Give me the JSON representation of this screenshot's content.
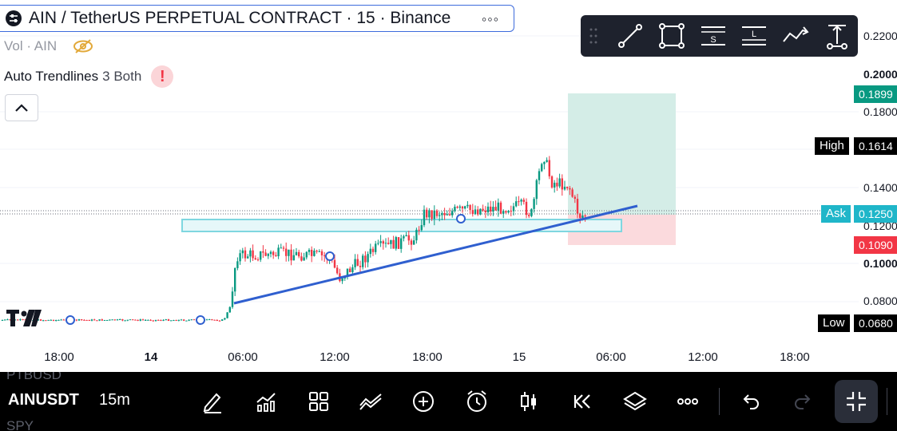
{
  "header": {
    "title": "AIN / TetherUS PERPETUAL CONTRACT · 15 · Binance",
    "more_label": "◦◦◦"
  },
  "indicators": {
    "volume_label": "Vol · AIN",
    "trendlines_name": "Auto Trendlines",
    "trendlines_params": "3 Both",
    "warning_label": "!"
  },
  "drawing_toolbar": {
    "tools": [
      "trend-line-icon",
      "rectangle-icon",
      "short-position-icon",
      "long-position-icon",
      "path-icon",
      "measure-icon"
    ],
    "short_label": "S",
    "long_label": "L"
  },
  "price_axis": {
    "labels": [
      {
        "text": "0.2200",
        "bold": false
      },
      {
        "text": "0.2000",
        "bold": true
      },
      {
        "text": "0.1800",
        "bold": false
      },
      {
        "text": "0.1400",
        "bold": false
      },
      {
        "text": "0.1200",
        "bold": false
      },
      {
        "text": "0.1000",
        "bold": true
      },
      {
        "text": "0.0800",
        "bold": false
      }
    ],
    "tags": {
      "target": "0.1899",
      "high_name": "High",
      "high": "0.1614",
      "ask_name": "Ask",
      "ask": "0.1250",
      "stop": "0.1090",
      "low_name": "Low",
      "low": "0.0680"
    }
  },
  "time_axis": {
    "labels": [
      {
        "text": "18:00",
        "bold": false
      },
      {
        "text": "14",
        "bold": true
      },
      {
        "text": "06:00",
        "bold": false
      },
      {
        "text": "12:00",
        "bold": false
      },
      {
        "text": "18:00",
        "bold": false
      },
      {
        "text": "15",
        "bold": false
      },
      {
        "text": "06:00",
        "bold": false
      },
      {
        "text": "12:00",
        "bold": false
      },
      {
        "text": "18:00",
        "bold": false
      }
    ]
  },
  "colors": {
    "up": "#089981",
    "down": "#f23645",
    "trendline": "#2f5fcf",
    "zone_border": "#7fd7e0",
    "zone_fill": "#e6f7f9",
    "target_fill": "#d4ede7",
    "stop_fill": "#fbdadd",
    "ask": "#1fb6c9",
    "target_tag": "#089981",
    "stop_tag": "#f23645",
    "dark_tag": "#000000"
  },
  "bottom_bar": {
    "symbol": "AINUSDT",
    "interval": "15m",
    "ghost_prev": "PTBUSD",
    "ghost_next": "SPY",
    "icons": [
      "pencil-icon",
      "indicators-icon",
      "layout-grid-icon",
      "compare-icon",
      "add-icon",
      "alert-clock-icon",
      "candle-type-icon",
      "replay-icon",
      "layers-icon",
      "more-icon",
      "undo-icon",
      "redo-icon",
      "fullscreen-icon"
    ]
  }
}
